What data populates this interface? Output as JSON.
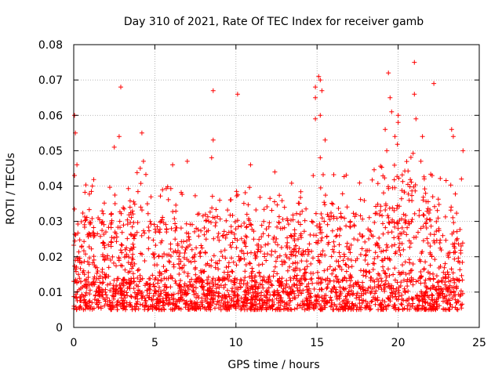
{
  "chart_data": {
    "type": "scatter",
    "title": "Day 310 of 2021, Rate Of TEC Index for receiver gamb",
    "xlabel": "GPS time / hours",
    "ylabel": "ROTI / TECUs",
    "xlim": [
      0,
      25
    ],
    "ylim": [
      0,
      0.08
    ],
    "xticks": [
      0,
      5,
      10,
      15,
      20,
      25
    ],
    "xtick_labels": [
      "0",
      "5",
      "10",
      "15",
      "20",
      "25"
    ],
    "yticks": [
      0,
      0.01,
      0.02,
      0.03,
      0.04,
      0.05,
      0.06,
      0.07,
      0.08
    ],
    "ytick_labels": [
      "0",
      "0.01",
      "0.02",
      "0.03",
      "0.04",
      "0.05",
      "0.06",
      "0.07",
      "0.08"
    ],
    "grid": true,
    "marker": "+",
    "color": "#ff0000",
    "series": [
      {
        "name": "ROTI",
        "description": "Dense cloud of ROTI samples over 0–24 h; bulk between 0.005 and 0.03 TECU/min",
        "envelope_hours": [
          0,
          1,
          2,
          3,
          4,
          5,
          6,
          7,
          8,
          9,
          10,
          11,
          12,
          13,
          14,
          15,
          16,
          17,
          18,
          19,
          20,
          21,
          22,
          23,
          24
        ],
        "envelope_upper": [
          0.032,
          0.034,
          0.03,
          0.033,
          0.036,
          0.033,
          0.031,
          0.03,
          0.033,
          0.034,
          0.032,
          0.031,
          0.03,
          0.031,
          0.033,
          0.035,
          0.036,
          0.035,
          0.032,
          0.04,
          0.043,
          0.042,
          0.036,
          0.033,
          0.03
        ],
        "outliers": [
          [
            0.05,
            0.06
          ],
          [
            0.1,
            0.055
          ],
          [
            0.2,
            0.046
          ],
          [
            0.05,
            0.043
          ],
          [
            2.5,
            0.051
          ],
          [
            2.8,
            0.054
          ],
          [
            2.9,
            0.068
          ],
          [
            4.2,
            0.055
          ],
          [
            4.3,
            0.047
          ],
          [
            4.1,
            0.045
          ],
          [
            6.1,
            0.046
          ],
          [
            7.0,
            0.047
          ],
          [
            8.6,
            0.067
          ],
          [
            8.6,
            0.053
          ],
          [
            8.5,
            0.048
          ],
          [
            10.1,
            0.066
          ],
          [
            10.9,
            0.046
          ],
          [
            12.4,
            0.044
          ],
          [
            14.9,
            0.065
          ],
          [
            14.9,
            0.059
          ],
          [
            15.1,
            0.071
          ],
          [
            15.2,
            0.07
          ],
          [
            15.3,
            0.067
          ],
          [
            15.2,
            0.06
          ],
          [
            15.5,
            0.053
          ],
          [
            15.2,
            0.048
          ],
          [
            14.9,
            0.068
          ],
          [
            19.2,
            0.056
          ],
          [
            19.4,
            0.072
          ],
          [
            19.5,
            0.065
          ],
          [
            19.6,
            0.061
          ],
          [
            19.8,
            0.054
          ],
          [
            20.0,
            0.06
          ],
          [
            20.0,
            0.058
          ],
          [
            19.3,
            0.05
          ],
          [
            21.0,
            0.075
          ],
          [
            21.0,
            0.066
          ],
          [
            21.1,
            0.059
          ],
          [
            21.5,
            0.054
          ],
          [
            22.2,
            0.069
          ],
          [
            21.4,
            0.047
          ],
          [
            23.3,
            0.056
          ],
          [
            23.4,
            0.054
          ],
          [
            24.0,
            0.05
          ],
          [
            23.9,
            0.042
          ]
        ]
      }
    ]
  }
}
